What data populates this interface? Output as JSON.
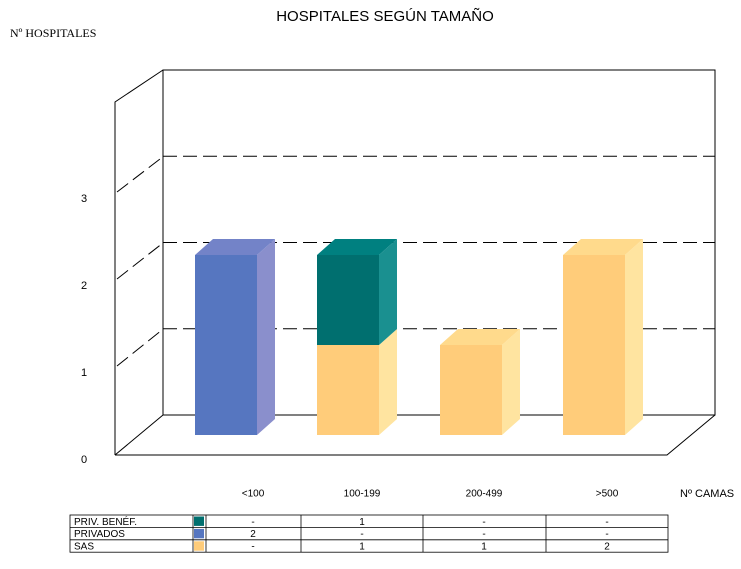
{
  "chart_data": {
    "type": "bar3d_stacked",
    "title": "HOSPITALES SEGÚN TAMAÑO",
    "y_label": "Nº HOSPITALES",
    "x_label": "Nº CAMAS",
    "categories": [
      "<100",
      "100-199",
      "200-499",
      ">500"
    ],
    "series": [
      {
        "name": "PRIV. BENÉF.",
        "color": "#006f6f",
        "side": "#1a9090",
        "top": "#008080",
        "values": [
          0,
          1,
          0,
          0
        ],
        "value_labels": [
          "-",
          "1",
          "-",
          "-"
        ]
      },
      {
        "name": "PRIVADOS",
        "color": "#5676c0",
        "side": "#8a8fcc",
        "top": "#7383c8",
        "values": [
          2,
          0,
          0,
          0
        ],
        "value_labels": [
          "2",
          "-",
          "-",
          "-"
        ]
      },
      {
        "name": "SAS",
        "color": "#ffcc7a",
        "side": "#ffe4a0",
        "top": "#ffda8c",
        "values": [
          0,
          1,
          1,
          2
        ],
        "value_labels": [
          "-",
          "1",
          "1",
          "2"
        ]
      }
    ],
    "ylim": [
      0,
      4
    ],
    "yticks": [
      0,
      1,
      2,
      3
    ],
    "grid": true
  }
}
